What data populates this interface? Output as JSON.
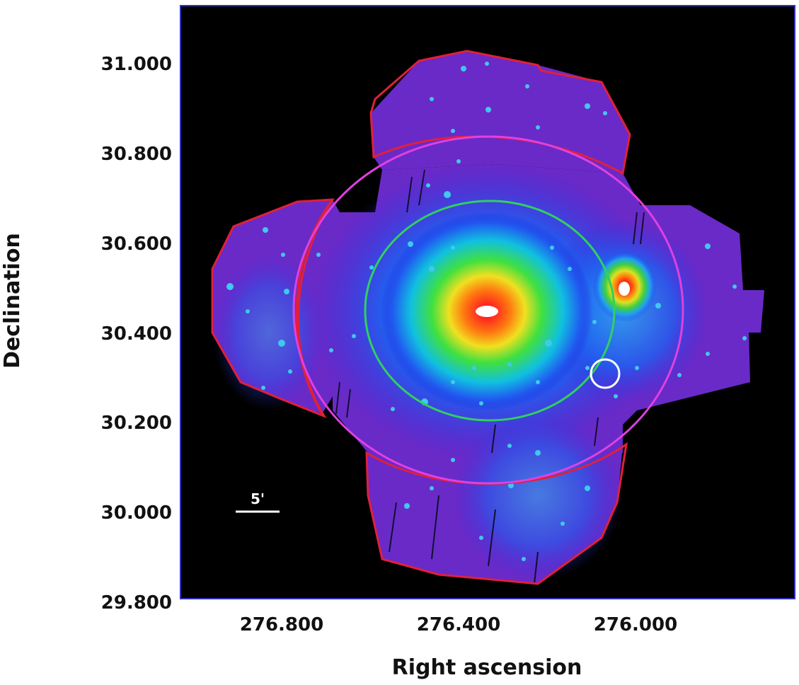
{
  "image": {
    "x_axis": {
      "label": "Right ascension",
      "ticks": [
        "276.800",
        "276.400",
        "276.000"
      ]
    },
    "y_axis": {
      "label": "Declination",
      "ticks": [
        "31.000",
        "30.800",
        "30.600",
        "30.400",
        "30.200",
        "30.000",
        "29.800"
      ]
    },
    "scale_bar": "5'",
    "colors": {
      "background": "#000000",
      "frame": "#3030c0",
      "field_outline": "#e0203a",
      "outer_circle": "#e040e0",
      "inner_circle": "#30d060",
      "source_marker": "#ffffff"
    }
  }
}
